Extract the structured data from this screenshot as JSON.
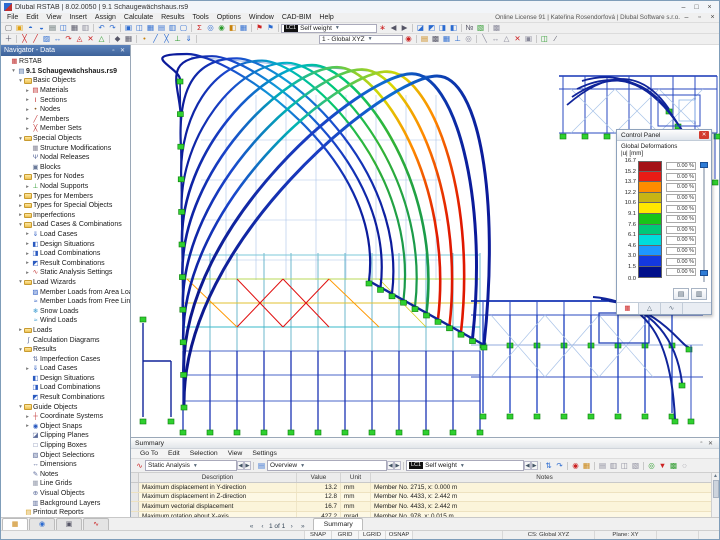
{
  "window": {
    "title": "Dlubal RSTAB | 8.02.0050 | 9.1 Schaugewächshaus.rs9",
    "license": "Online License 91 | Kateřina Rosendorfová | Dlubal Software s.r.o.",
    "controls": {
      "minimize": "–",
      "maximize": "□",
      "close": "×"
    },
    "mdi_controls": {
      "minimize": "–",
      "restore": "▫",
      "close": "×"
    }
  },
  "menu": [
    "File",
    "Edit",
    "View",
    "Insert",
    "Assign",
    "Calculate",
    "Results",
    "Tools",
    "Options",
    "Window",
    "CAD-BIM",
    "Help"
  ],
  "toolbar1": {
    "icons_left": [
      {
        "n": "new-file-icon",
        "g": "▢",
        "c": "#666"
      },
      {
        "n": "open-icon",
        "g": "▣",
        "c": "#dfa010"
      },
      {
        "n": "import-icon",
        "g": "◓",
        "c": "#2a6ad0"
      },
      {
        "n": "export-icon",
        "g": "◒",
        "c": "#2a6ad0"
      },
      {
        "n": "copy-icon",
        "g": "▤",
        "c": "#566"
      },
      {
        "n": "save-icon",
        "g": "◫",
        "c": "#2a6ad0"
      },
      {
        "n": "print-icon",
        "g": "▦",
        "c": "#556"
      },
      {
        "n": "new-window-icon",
        "g": "▥",
        "c": "#889"
      },
      "|",
      {
        "n": "undo-icon",
        "g": "↶",
        "c": "#2a6ad0"
      },
      {
        "n": "redo-icon",
        "g": "↷",
        "c": "#2a6ad0"
      },
      "|",
      {
        "n": "window-cascade-icon",
        "g": "▣",
        "c": "#2a6ad0"
      },
      {
        "n": "window-tile-icon",
        "g": "◫",
        "c": "#2a6ad0"
      },
      {
        "n": "window-isometric-icon",
        "g": "▦",
        "c": "#2a6ad0"
      },
      {
        "n": "window-xz-icon",
        "g": "▤",
        "c": "#2a6ad0"
      },
      {
        "n": "window-xy-icon",
        "g": "▥",
        "c": "#2a6ad0"
      },
      {
        "n": "window-single-icon",
        "g": "▢",
        "c": "#2a6ad0"
      },
      "|",
      {
        "n": "calculate-icon",
        "g": "Σ",
        "c": "#c22"
      },
      {
        "n": "check-model-icon",
        "g": "◎",
        "c": "#2a6ad0"
      },
      {
        "n": "results-icon",
        "g": "◉",
        "c": "#2a9a2a"
      },
      {
        "n": "panel-icon",
        "g": "◧",
        "c": "#c9820a"
      },
      {
        "n": "tables-icon",
        "g": "▦",
        "c": "#2a6ad0"
      },
      "|",
      {
        "n": "flag-loads-icon",
        "g": "⚑",
        "c": "#c22"
      },
      {
        "n": "flag-results-icon",
        "g": "⚑",
        "c": "#2a6ad0"
      },
      "|"
    ],
    "load_case_badge": "LC1",
    "load_case": "Self weight",
    "icons_right": [
      {
        "n": "favorite-icon",
        "g": "∗",
        "c": "#c22"
      },
      {
        "n": "prev-lc-icon",
        "g": "◀",
        "c": "#556"
      },
      {
        "n": "next-lc-icon",
        "g": "▶",
        "c": "#556"
      },
      "|",
      {
        "n": "render-solid-icon",
        "g": "◪",
        "c": "#2a6ad0"
      },
      {
        "n": "render-wire-icon",
        "g": "◩",
        "c": "#2a6ad0"
      },
      {
        "n": "render-transparent-icon",
        "g": "◨",
        "c": "#2a6ad0"
      },
      {
        "n": "visibility-icon",
        "g": "◧",
        "c": "#2a6ad0"
      },
      "|",
      {
        "n": "numbering-icon",
        "g": "№",
        "c": "#556"
      },
      {
        "n": "colors-icon",
        "g": "▧",
        "c": "#2a9a2a"
      },
      "|",
      {
        "n": "options-icon",
        "g": "▩",
        "c": "#889"
      }
    ]
  },
  "toolbar2": {
    "icons_left": [
      {
        "n": "select-icon",
        "g": "＋",
        "c": "#556"
      },
      "|",
      {
        "n": "edit-node-icon",
        "g": "╳",
        "c": "#c22"
      },
      {
        "n": "edit-member-icon",
        "g": "╱",
        "c": "#c22"
      },
      {
        "n": "copy-object-icon",
        "g": "▨",
        "c": "#2a6ad0"
      },
      {
        "n": "move-icon",
        "g": "↔",
        "c": "#2a6ad0"
      },
      {
        "n": "rotate-icon",
        "g": "↷",
        "c": "#c22"
      },
      {
        "n": "mirror-icon",
        "g": "◬",
        "c": "#c22"
      },
      {
        "n": "delete-icon",
        "g": "✕",
        "c": "#c22"
      },
      {
        "n": "extrude-icon",
        "g": "△",
        "c": "#2a9a2a"
      },
      "|",
      {
        "n": "snap-node-icon",
        "g": "◆",
        "c": "#556"
      },
      {
        "n": "snap-grid-icon",
        "g": "▦",
        "c": "#556"
      },
      "|",
      {
        "n": "new-node-icon",
        "g": "•",
        "c": "#c9820a"
      },
      {
        "n": "new-member-icon",
        "g": "╱",
        "c": "#2a6ad0"
      },
      {
        "n": "new-set-icon",
        "g": "╳",
        "c": "#2a6ad0"
      },
      {
        "n": "new-support-icon",
        "g": "⊥",
        "c": "#2a9a2a"
      },
      {
        "n": "new-load-icon",
        "g": "⇓",
        "c": "#2a6ad0"
      },
      "|"
    ],
    "coord_system": "1 - Global XYZ",
    "icons_right": [
      {
        "n": "work-plane-icon",
        "g": "◉",
        "c": "#c22"
      },
      "|",
      {
        "n": "plane-xy-icon",
        "g": "▤",
        "c": "#c9820a"
      },
      {
        "n": "plane-settings-icon",
        "g": "▩",
        "c": "#556"
      },
      {
        "n": "grid-on-icon",
        "g": "▦",
        "c": "#2a6ad0"
      },
      {
        "n": "ortho-icon",
        "g": "⊥",
        "c": "#2a6ad0"
      },
      {
        "n": "snap-icon",
        "g": "◎",
        "c": "#889"
      },
      "|",
      {
        "n": "guide-line-icon",
        "g": "╲",
        "c": "#889"
      },
      {
        "n": "dimension-icon",
        "g": "↔",
        "c": "#889"
      },
      {
        "n": "comment-icon",
        "g": "△",
        "c": "#889"
      },
      {
        "n": "clip-icon",
        "g": "✕",
        "c": "#c22"
      },
      {
        "n": "box-icon",
        "g": "▣",
        "c": "#889"
      },
      "|",
      {
        "n": "visual-icon",
        "g": "◫",
        "c": "#2a9a2a"
      },
      {
        "n": "layers-icon",
        "g": "∕",
        "c": "#556"
      }
    ]
  },
  "navigator": {
    "title": "Navigator - Data",
    "tree": [
      {
        "t": "RSTAB",
        "l": 0,
        "e": "n",
        "i": "rstab"
      },
      {
        "t": "9.1 Schaugewächshaus.rs9",
        "l": 1,
        "e": "o",
        "i": "file",
        "b": 1
      },
      {
        "t": "Basic Objects",
        "l": 2,
        "e": "o",
        "i": "folder"
      },
      {
        "t": "Materials",
        "l": 3,
        "e": "c",
        "i": "materials"
      },
      {
        "t": "Sections",
        "l": 3,
        "e": "c",
        "i": "sections"
      },
      {
        "t": "Nodes",
        "l": 3,
        "e": "c",
        "i": "nodes"
      },
      {
        "t": "Members",
        "l": 3,
        "e": "c",
        "i": "members"
      },
      {
        "t": "Member Sets",
        "l": 3,
        "e": "c",
        "i": "membersets"
      },
      {
        "t": "Special Objects",
        "l": 2,
        "e": "o",
        "i": "folder"
      },
      {
        "t": "Structure Modifications",
        "l": 3,
        "e": "n",
        "i": "structmod"
      },
      {
        "t": "Nodal Releases",
        "l": 3,
        "e": "n",
        "i": "nodalrel"
      },
      {
        "t": "Blocks",
        "l": 3,
        "e": "n",
        "i": "blocks"
      },
      {
        "t": "Types for Nodes",
        "l": 2,
        "e": "o",
        "i": "folder"
      },
      {
        "t": "Nodal Supports",
        "l": 3,
        "e": "c",
        "i": "nodalsup"
      },
      {
        "t": "Types for Members",
        "l": 2,
        "e": "c",
        "i": "folder"
      },
      {
        "t": "Types for Special Objects",
        "l": 2,
        "e": "c",
        "i": "folder"
      },
      {
        "t": "Imperfections",
        "l": 2,
        "e": "c",
        "i": "folder"
      },
      {
        "t": "Load Cases & Combinations",
        "l": 2,
        "e": "o",
        "i": "folder"
      },
      {
        "t": "Load Cases",
        "l": 3,
        "e": "c",
        "i": "loadcases"
      },
      {
        "t": "Design Situations",
        "l": 3,
        "e": "c",
        "i": "design"
      },
      {
        "t": "Load Combinations",
        "l": 3,
        "e": "c",
        "i": "loadcombo"
      },
      {
        "t": "Result Combinations",
        "l": 3,
        "e": "c",
        "i": "resultcombo"
      },
      {
        "t": "Static Analysis Settings",
        "l": 3,
        "e": "c",
        "i": "sas"
      },
      {
        "t": "Load Wizards",
        "l": 2,
        "e": "o",
        "i": "folder"
      },
      {
        "t": "Member Loads from Area Load",
        "l": 3,
        "e": "n",
        "i": "wizarea"
      },
      {
        "t": "Member Loads from Free Line Load",
        "l": 3,
        "e": "n",
        "i": "wizline"
      },
      {
        "t": "Snow Loads",
        "l": 3,
        "e": "n",
        "i": "snow"
      },
      {
        "t": "Wind Loads",
        "l": 3,
        "e": "n",
        "i": "wind"
      },
      {
        "t": "Loads",
        "l": 2,
        "e": "c",
        "i": "folder"
      },
      {
        "t": "Calculation Diagrams",
        "l": 2,
        "e": "n",
        "i": "calcdiag"
      },
      {
        "t": "Results",
        "l": 2,
        "e": "o",
        "i": "folder"
      },
      {
        "t": "Imperfection Cases",
        "l": 3,
        "e": "n",
        "i": "imperf"
      },
      {
        "t": "Load Cases",
        "l": 3,
        "e": "c",
        "i": "loadcases"
      },
      {
        "t": "Design Situations",
        "l": 3,
        "e": "n",
        "i": "design"
      },
      {
        "t": "Load Combinations",
        "l": 3,
        "e": "n",
        "i": "loadcombo"
      },
      {
        "t": "Result Combinations",
        "l": 3,
        "e": "n",
        "i": "resultcombo"
      },
      {
        "t": "Guide Objects",
        "l": 2,
        "e": "o",
        "i": "folder"
      },
      {
        "t": "Coordinate Systems",
        "l": 3,
        "e": "c",
        "i": "coordsys"
      },
      {
        "t": "Object Snaps",
        "l": 3,
        "e": "c",
        "i": "objsnap"
      },
      {
        "t": "Clipping Planes",
        "l": 3,
        "e": "n",
        "i": "clipplane"
      },
      {
        "t": "Clipping Boxes",
        "l": 3,
        "e": "n",
        "i": "clipbox"
      },
      {
        "t": "Object Selections",
        "l": 3,
        "e": "n",
        "i": "objsel"
      },
      {
        "t": "Dimensions",
        "l": 3,
        "e": "n",
        "i": "dims"
      },
      {
        "t": "Notes",
        "l": 3,
        "e": "n",
        "i": "notes"
      },
      {
        "t": "Line Grids",
        "l": 3,
        "e": "n",
        "i": "linegrid"
      },
      {
        "t": "Visual Objects",
        "l": 3,
        "e": "n",
        "i": "visobj"
      },
      {
        "t": "Background Layers",
        "l": 3,
        "e": "n",
        "i": "bglayer"
      },
      {
        "t": "Printout Reports",
        "l": 2,
        "e": "n",
        "i": "printout"
      }
    ],
    "tabs": [
      {
        "n": "nav-tab-data",
        "g": "▦",
        "c": "#c9820a",
        "active": true
      },
      {
        "n": "nav-tab-display",
        "g": "◉",
        "c": "#2a6ad0"
      },
      {
        "n": "nav-tab-views",
        "g": "▣",
        "c": "#556"
      },
      {
        "n": "nav-tab-results",
        "g": "∿",
        "c": "#c22"
      }
    ]
  },
  "control_panel": {
    "title": "Control Panel",
    "label_line1": "Global Deformations",
    "label_line2": "|u| [mm]",
    "scale": {
      "ticks": [
        "16.7",
        "15.2",
        "13.7",
        "12.2",
        "10.6",
        "9.1",
        "7.6",
        "6.1",
        "4.6",
        "3.0",
        "1.5",
        "0.0"
      ],
      "colors": [
        "#a41217",
        "#e81c16",
        "#ff8c00",
        "#c8b414",
        "#ffe800",
        "#18c418",
        "#00c878",
        "#00dcdc",
        "#1e96ff",
        "#1438e0",
        "#000f8a"
      ],
      "percent": "0.00 %"
    },
    "tabs": [
      {
        "n": "cp-tab-color-scale",
        "g": "▦",
        "c": "#c22",
        "active": true
      },
      {
        "n": "cp-tab-display-factors",
        "g": "△",
        "c": "#567"
      },
      {
        "n": "cp-tab-result-values",
        "g": "∿",
        "c": "#567"
      }
    ],
    "buttons": [
      {
        "n": "cp-print-scale-button",
        "g": "▤"
      },
      {
        "n": "cp-options-button",
        "g": "▥"
      }
    ]
  },
  "summary": {
    "title": "Summary",
    "menu": [
      "Go To",
      "Edit",
      "Selection",
      "View",
      "Settings"
    ],
    "toolbar": {
      "analysis_type": "Static Analysis",
      "view_mode": "Overview",
      "lc_badge": "LC1",
      "lc_name": "Self weight",
      "icons": [
        {
          "n": "sync-selection-icon",
          "g": "⇅",
          "c": "#2a6ad0"
        },
        {
          "n": "follow-icon",
          "g": "↷",
          "c": "#2a6ad0"
        },
        "|",
        {
          "n": "goto-model-icon",
          "g": "◉",
          "c": "#c22"
        },
        {
          "n": "goto-table-icon",
          "g": "▦",
          "c": "#c9820a"
        },
        "|",
        {
          "n": "table-view-icon",
          "g": "▤",
          "c": "#889"
        },
        {
          "n": "freeze-icon",
          "g": "▥",
          "c": "#889"
        },
        {
          "n": "export-table-icon",
          "g": "◫",
          "c": "#889"
        },
        {
          "n": "sum-filter-icon",
          "g": "▧",
          "c": "#889"
        },
        "|",
        {
          "n": "ok-icon",
          "g": "◎",
          "c": "#2a9a2a"
        },
        {
          "n": "filter-icon",
          "g": "▼",
          "c": "#c22"
        },
        {
          "n": "color-ref-icon",
          "g": "▩",
          "c": "#2a9a2a"
        },
        {
          "n": "search-icon",
          "g": "◌",
          "c": "#556"
        }
      ]
    },
    "table": {
      "headers": [
        "Description",
        "Value",
        "Unit",
        "Notes"
      ],
      "rows": [
        [
          "Maximum displacement in Y-direction",
          "13.2",
          "mm",
          "Member No. 2715, x: 0.000 m"
        ],
        [
          "Maximum displacement in Z-direction",
          "12.8",
          "mm",
          "Member No. 4433, x: 2.442 m"
        ],
        [
          "Maximum vectorial displacement",
          "16.7",
          "mm",
          "Member No. 4433, x: 2.442 m"
        ],
        [
          "Maximum rotation about X-axis",
          "427.2",
          "mrad",
          "Member No. 978, x: 0.015 m"
        ],
        [
          "Maximum rotation about Y-axis",
          "-4.1",
          "mrad",
          "Member No. 4761, x: 0.360 m"
        ]
      ]
    },
    "pagination": {
      "first": "«",
      "prev": "‹",
      "label": "1 of 1",
      "next": "›",
      "last": "»",
      "tab": "Summary"
    }
  },
  "status_bar": {
    "toggles": [
      "SNAP",
      "GRID",
      "LGRID",
      "OSNAP"
    ],
    "cs": "CS: Global XYZ",
    "plane": "Plane: XY"
  },
  "model_palette": {
    "support_fill": "#2fd02f",
    "support_stroke": "#0b7d0b",
    "member_blue": "#10249a",
    "member_light": "#a9c3e8"
  }
}
